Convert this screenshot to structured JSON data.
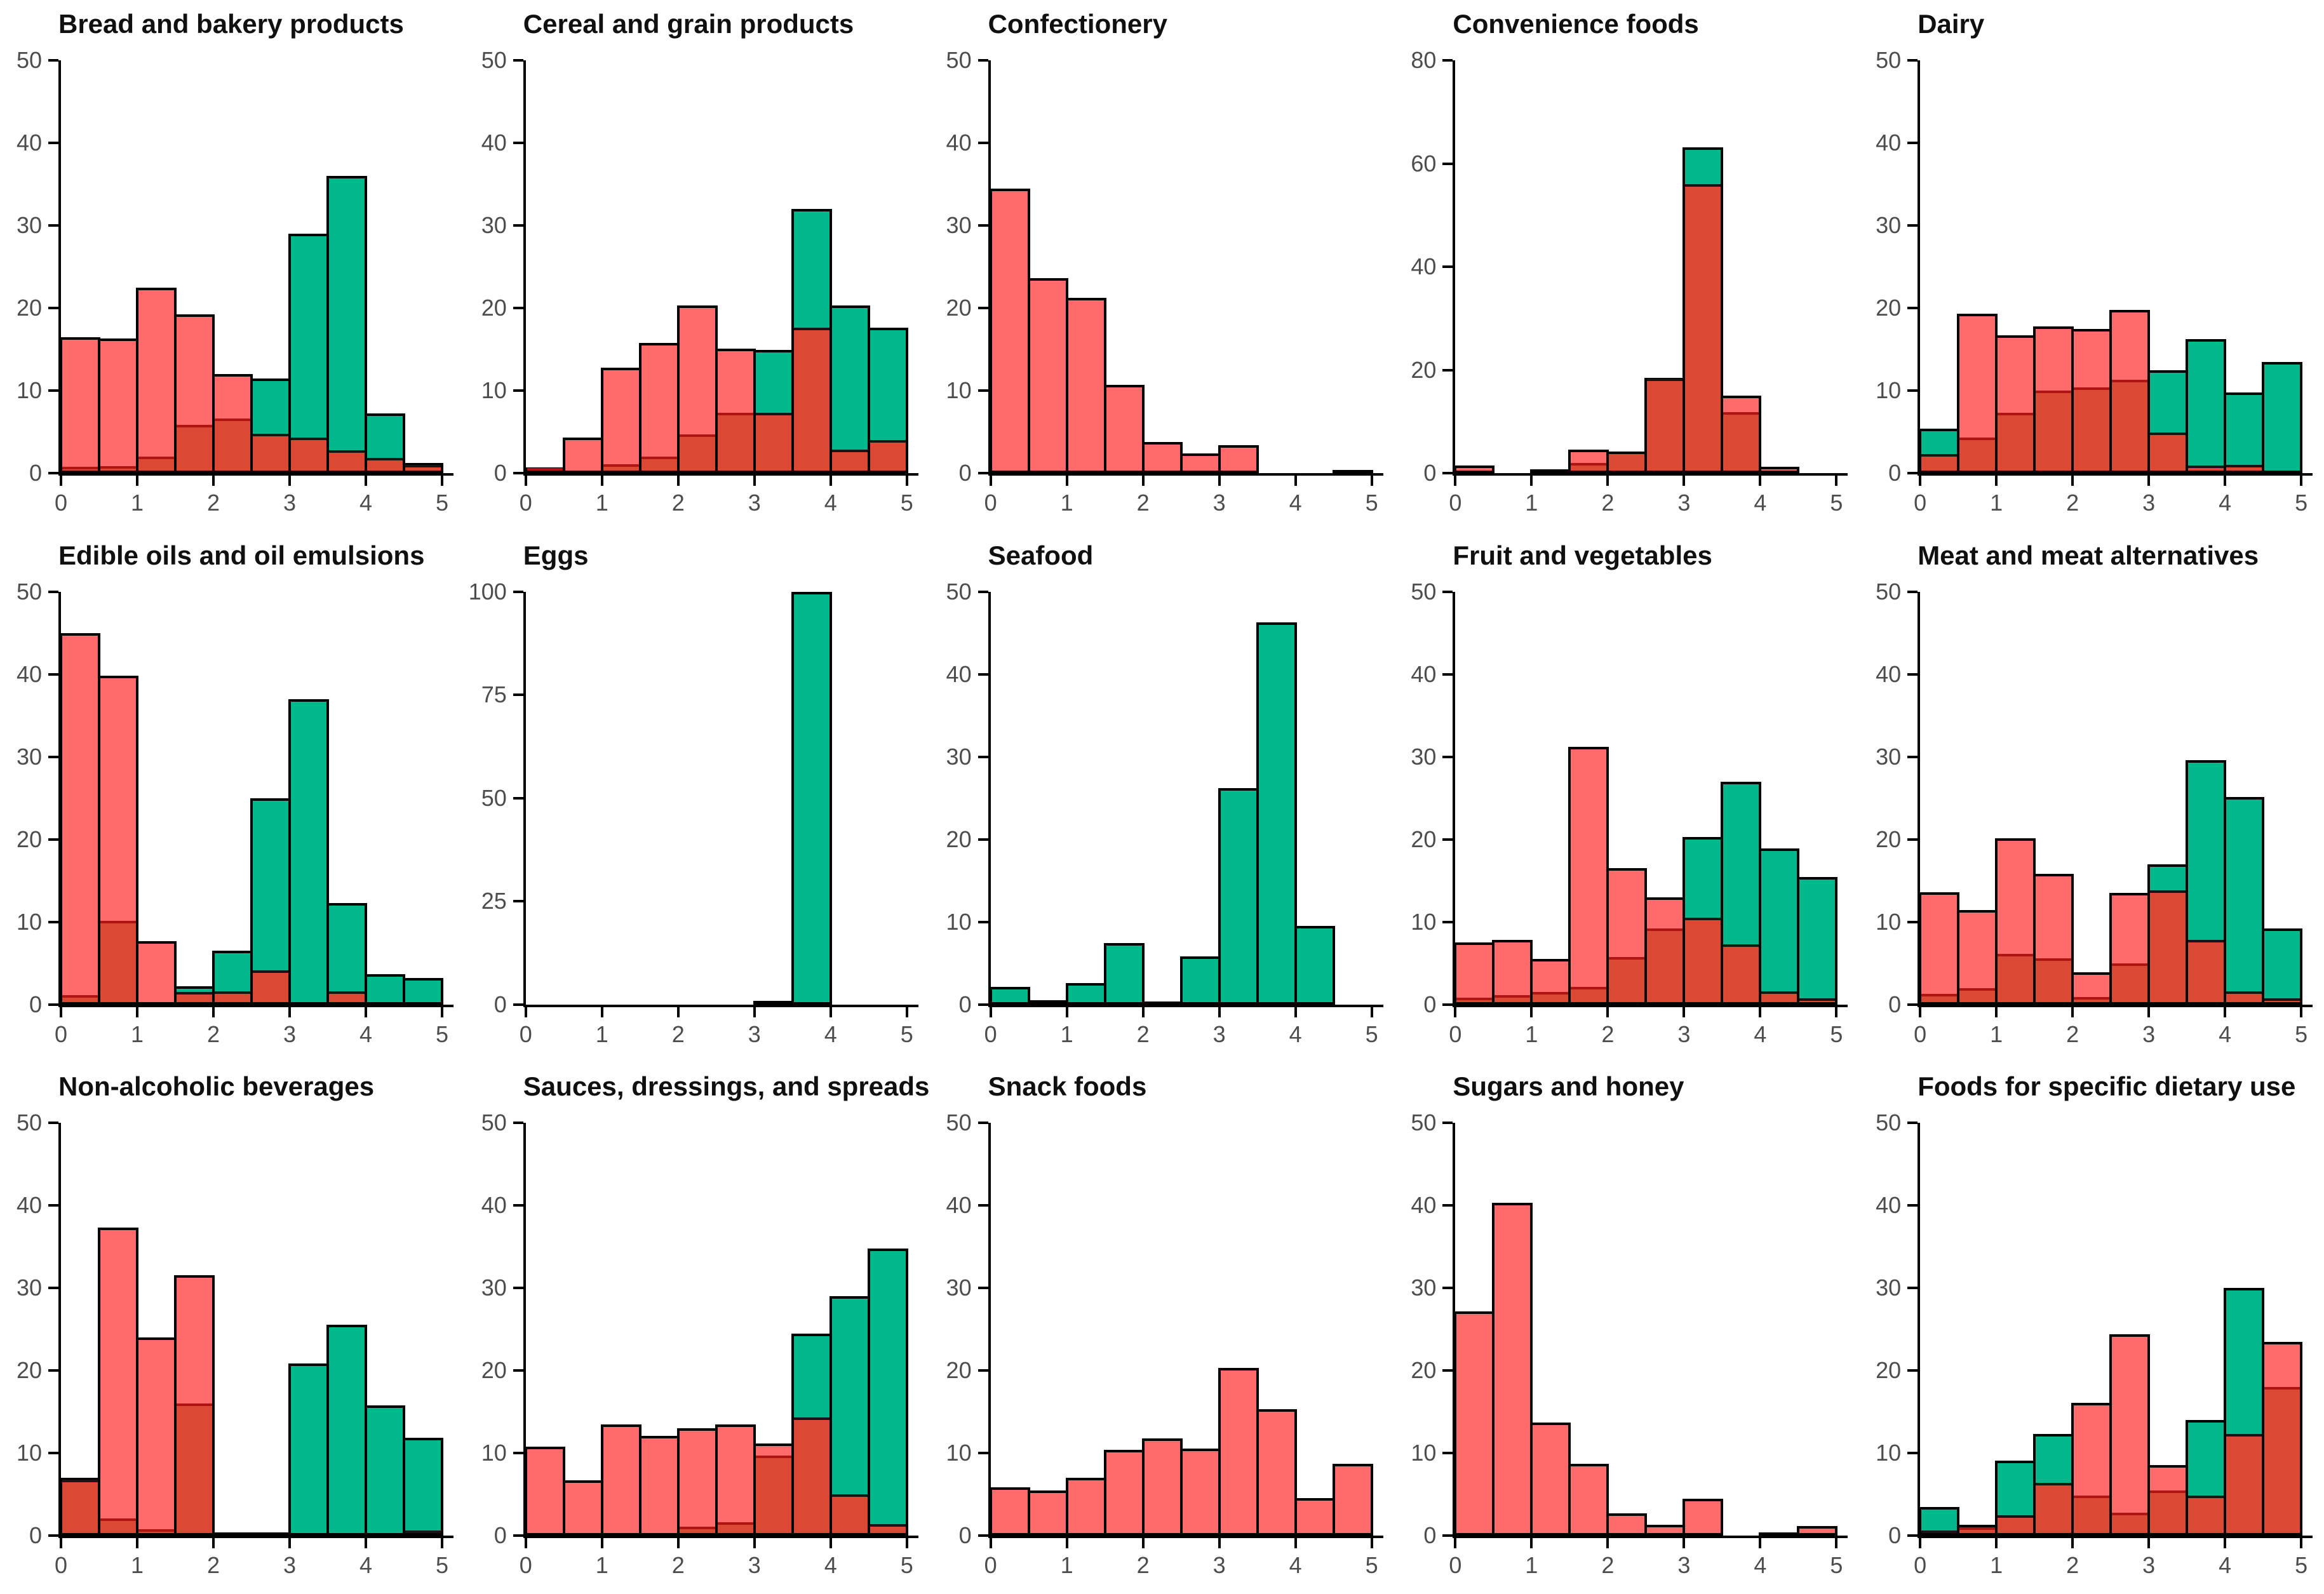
{
  "colors": {
    "red": "#FF6A6A",
    "green": "#00B88C",
    "overlap": "#DB4935",
    "overlap_divider_under_red": "#AE1512",
    "overlap_divider_under_green": "#161616",
    "bar_border": "#000000",
    "axis": "#000000",
    "tick_label": "#4d4d4d",
    "title": "#101010"
  },
  "chart_data": [
    {
      "type": "bar",
      "title": "Bread and bakery products",
      "xlim": [
        0,
        5
      ],
      "bin_width": 0.5,
      "xticks": [
        0,
        1,
        2,
        3,
        4,
        5
      ],
      "ylim": [
        0,
        50
      ],
      "yticks": [
        0,
        10,
        20,
        30,
        40,
        50
      ],
      "series": [
        {
          "name": "red",
          "values": [
            16.5,
            16.3,
            22.5,
            19.2,
            12,
            4.5,
            4,
            2.5,
            1.5,
            0.7
          ]
        },
        {
          "name": "green",
          "values": [
            0.5,
            0.5,
            1.7,
            5.5,
            6.3,
            11.5,
            29,
            36,
            7.2,
            1.2
          ]
        }
      ]
    },
    {
      "type": "bar",
      "title": "Cereal and grain products",
      "xlim": [
        0,
        5
      ],
      "bin_width": 0.5,
      "xticks": [
        0,
        1,
        2,
        3,
        4,
        5
      ],
      "ylim": [
        0,
        50
      ],
      "yticks": [
        0,
        10,
        20,
        30,
        40,
        50
      ],
      "series": [
        {
          "name": "red",
          "values": [
            0.7,
            4.3,
            12.8,
            15.8,
            20.3,
            15.1,
            7,
            17.3,
            2.5,
            3.7
          ]
        },
        {
          "name": "green",
          "values": [
            0.3,
            0,
            0.8,
            1.7,
            4.4,
            7,
            14.9,
            32,
            20.3,
            17.6
          ]
        }
      ]
    },
    {
      "type": "bar",
      "title": "Confectionery",
      "xlim": [
        0,
        5
      ],
      "bin_width": 0.5,
      "xticks": [
        0,
        1,
        2,
        3,
        4,
        5
      ],
      "ylim": [
        0,
        50
      ],
      "yticks": [
        0,
        10,
        20,
        30,
        40,
        50
      ],
      "series": [
        {
          "name": "red",
          "values": [
            34.5,
            23.6,
            21.2,
            10.7,
            3.8,
            2.4,
            3.4,
            0,
            0,
            0.4
          ]
        },
        {
          "name": "green",
          "values": [
            0,
            0,
            0,
            0,
            0,
            0,
            0,
            0,
            0,
            0.2
          ]
        }
      ]
    },
    {
      "type": "bar",
      "title": "Convenience foods",
      "xlim": [
        0,
        5
      ],
      "bin_width": 0.5,
      "xticks": [
        0,
        1,
        2,
        3,
        4,
        5
      ],
      "ylim": [
        0,
        80
      ],
      "yticks": [
        0,
        20,
        40,
        60,
        80
      ],
      "series": [
        {
          "name": "red",
          "values": [
            1.5,
            0,
            0.7,
            4.5,
            4.2,
            17.8,
            55.5,
            15,
            1.2,
            0
          ]
        },
        {
          "name": "green",
          "values": [
            0,
            0,
            0.5,
            1.5,
            4,
            18.5,
            63.2,
            11.3,
            0.3,
            0
          ]
        }
      ]
    },
    {
      "type": "bar",
      "title": "Dairy",
      "xlim": [
        0,
        5
      ],
      "bin_width": 0.5,
      "xticks": [
        0,
        1,
        2,
        3,
        4,
        5
      ],
      "ylim": [
        0,
        50
      ],
      "yticks": [
        0,
        10,
        20,
        30,
        40,
        50
      ],
      "series": [
        {
          "name": "red",
          "values": [
            2,
            19.3,
            16.7,
            17.8,
            17.5,
            19.8,
            4.6,
            0.6,
            0.7,
            0
          ]
        },
        {
          "name": "green",
          "values": [
            5.4,
            4,
            7,
            9.7,
            10.1,
            11,
            12.5,
            16.2,
            9.8,
            13.5
          ]
        }
      ]
    },
    {
      "type": "bar",
      "title": "Edible oils and oil emulsions",
      "xlim": [
        0,
        5
      ],
      "bin_width": 0.5,
      "xticks": [
        0,
        1,
        2,
        3,
        4,
        5
      ],
      "ylim": [
        0,
        50
      ],
      "yticks": [
        0,
        10,
        20,
        30,
        40,
        50
      ],
      "series": [
        {
          "name": "red",
          "values": [
            45,
            39.8,
            7.7,
            1.2,
            1.3,
            3.8,
            0,
            1.3,
            0,
            0
          ]
        },
        {
          "name": "green",
          "values": [
            0.8,
            9.8,
            0,
            2.2,
            6.5,
            25,
            37,
            12.3,
            3.7,
            3.2
          ]
        }
      ]
    },
    {
      "type": "bar",
      "title": "Eggs",
      "xlim": [
        0,
        5
      ],
      "bin_width": 0.5,
      "xticks": [
        0,
        1,
        2,
        3,
        4,
        5
      ],
      "ylim": [
        0,
        100
      ],
      "yticks": [
        0,
        25,
        50,
        75,
        100
      ],
      "series": [
        {
          "name": "red",
          "values": [
            0,
            0,
            0,
            0,
            0,
            0,
            0,
            0,
            0,
            0
          ]
        },
        {
          "name": "green",
          "values": [
            0,
            0,
            0,
            0,
            0,
            0,
            0.8,
            100,
            0,
            0
          ]
        }
      ]
    },
    {
      "type": "bar",
      "title": "Seafood",
      "xlim": [
        0,
        5
      ],
      "bin_width": 0.5,
      "xticks": [
        0,
        1,
        2,
        3,
        4,
        5
      ],
      "ylim": [
        0,
        50
      ],
      "yticks": [
        0,
        10,
        20,
        30,
        40,
        50
      ],
      "series": [
        {
          "name": "red",
          "values": [
            0,
            0,
            0,
            0,
            0,
            0,
            0,
            0,
            0,
            0
          ]
        },
        {
          "name": "green",
          "values": [
            2.1,
            0.5,
            2.6,
            7.4,
            0.3,
            5.8,
            26.2,
            46.3,
            9.5,
            0
          ]
        }
      ]
    },
    {
      "type": "bar",
      "title": "Fruit and vegetables",
      "xlim": [
        0,
        5
      ],
      "bin_width": 0.5,
      "xticks": [
        0,
        1,
        2,
        3,
        4,
        5
      ],
      "ylim": [
        0,
        50
      ],
      "yticks": [
        0,
        10,
        20,
        30,
        40,
        50
      ],
      "series": [
        {
          "name": "red",
          "values": [
            7.5,
            7.8,
            5.5,
            31.2,
            16.5,
            13,
            10.2,
            7,
            1.3,
            0.4
          ]
        },
        {
          "name": "green",
          "values": [
            0.5,
            0.8,
            1.2,
            1.8,
            5.4,
            8.9,
            20.3,
            27,
            18.9,
            15.4
          ]
        }
      ]
    },
    {
      "type": "bar",
      "title": "Meat and meat alternatives",
      "xlim": [
        0,
        5
      ],
      "bin_width": 0.5,
      "xticks": [
        0,
        1,
        2,
        3,
        4,
        5
      ],
      "ylim": [
        0,
        50
      ],
      "yticks": [
        0,
        10,
        20,
        30,
        40,
        50
      ],
      "series": [
        {
          "name": "red",
          "values": [
            13.6,
            11.4,
            20.1,
            15.8,
            3.9,
            13.5,
            13.5,
            7.5,
            1.3,
            0.4
          ]
        },
        {
          "name": "green",
          "values": [
            1,
            1.7,
            5.8,
            5.3,
            0.6,
            4.7,
            17,
            29.6,
            25.1,
            9.2
          ]
        }
      ]
    },
    {
      "type": "bar",
      "title": "Non-alcoholic beverages",
      "xlim": [
        0,
        5
      ],
      "bin_width": 0.5,
      "xticks": [
        0,
        1,
        2,
        3,
        4,
        5
      ],
      "ylim": [
        0,
        50
      ],
      "yticks": [
        0,
        10,
        20,
        30,
        40,
        50
      ],
      "series": [
        {
          "name": "red",
          "values": [
            6.5,
            37.3,
            24,
            31.6,
            0.3,
            0,
            0,
            0,
            0,
            0.3
          ]
        },
        {
          "name": "green",
          "values": [
            7,
            1.8,
            0.5,
            15.7,
            0.3,
            0.4,
            20.9,
            25.6,
            15.8,
            11.9
          ]
        }
      ]
    },
    {
      "type": "bar",
      "title": "Sauces, dressings, and spreads",
      "xlim": [
        0,
        5
      ],
      "bin_width": 0.5,
      "xticks": [
        0,
        1,
        2,
        3,
        4,
        5
      ],
      "ylim": [
        0,
        50
      ],
      "yticks": [
        0,
        10,
        20,
        30,
        40,
        50
      ],
      "series": [
        {
          "name": "red",
          "values": [
            10.8,
            6.7,
            13.5,
            12.1,
            13,
            13.5,
            11.2,
            14,
            4.7,
            1.1
          ]
        },
        {
          "name": "green",
          "values": [
            0,
            0,
            0,
            0,
            0.8,
            1.3,
            9.4,
            24.5,
            29,
            34.8
          ]
        }
      ]
    },
    {
      "type": "bar",
      "title": "Snack foods",
      "xlim": [
        0,
        5
      ],
      "bin_width": 0.5,
      "xticks": [
        0,
        1,
        2,
        3,
        4,
        5
      ],
      "ylim": [
        0,
        50
      ],
      "yticks": [
        0,
        10,
        20,
        30,
        40,
        50
      ],
      "series": [
        {
          "name": "red",
          "values": [
            5.9,
            5.5,
            7,
            10.4,
            11.8,
            10.6,
            20.3,
            15.3,
            4.6,
            8.7
          ]
        },
        {
          "name": "green",
          "values": [
            0,
            0,
            0,
            0,
            0,
            0,
            0,
            0,
            0,
            0
          ]
        }
      ]
    },
    {
      "type": "bar",
      "title": "Sugars and honey",
      "xlim": [
        0,
        5
      ],
      "bin_width": 0.5,
      "xticks": [
        0,
        1,
        2,
        3,
        4,
        5
      ],
      "ylim": [
        0,
        50
      ],
      "yticks": [
        0,
        10,
        20,
        30,
        40,
        50
      ],
      "series": [
        {
          "name": "red",
          "values": [
            27.2,
            40.3,
            13.7,
            8.7,
            2.7,
            1.3,
            4.5,
            0,
            0.4,
            1.2
          ]
        },
        {
          "name": "green",
          "values": [
            0,
            0,
            0,
            0,
            0,
            0,
            0,
            0,
            0,
            0
          ]
        }
      ]
    },
    {
      "type": "bar",
      "title": "Foods for specific dietary use",
      "xlim": [
        0,
        5
      ],
      "bin_width": 0.5,
      "xticks": [
        0,
        1,
        2,
        3,
        4,
        5
      ],
      "ylim": [
        0,
        50
      ],
      "yticks": [
        0,
        10,
        20,
        30,
        40,
        50
      ],
      "series": [
        {
          "name": "red",
          "values": [
            0.3,
            1.3,
            2.2,
            6.1,
            16.1,
            24.4,
            8.6,
            4.6,
            12,
            23.5
          ]
        },
        {
          "name": "green",
          "values": [
            3.5,
            0.7,
            9.1,
            12.3,
            4.6,
            2.5,
            5.2,
            14,
            30,
            17.7
          ]
        }
      ]
    }
  ]
}
